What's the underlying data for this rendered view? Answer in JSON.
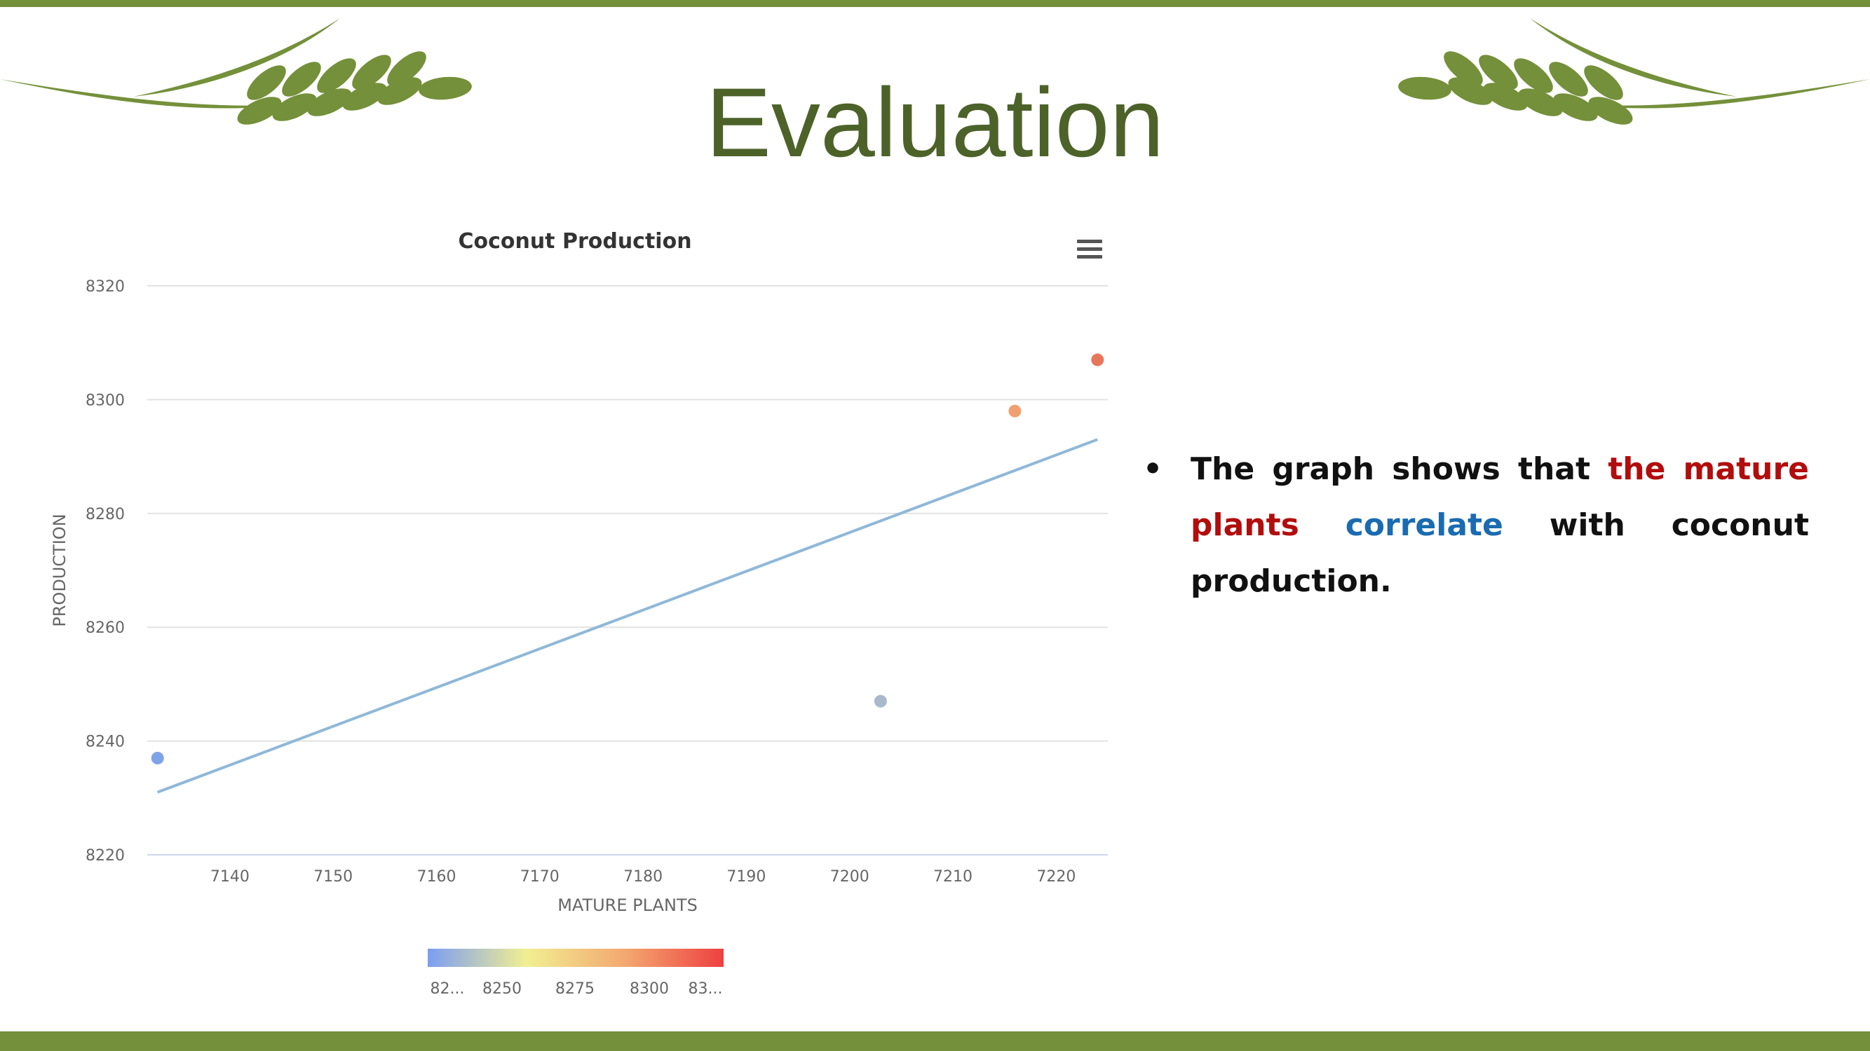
{
  "slide": {
    "title": "Evaluation",
    "bullet": {
      "marker": "•",
      "text_before": "The graph shows that ",
      "highlight_red": "the mature plants",
      "text_between": " ",
      "highlight_blue": "correlate",
      "text_after": " with coconut production."
    },
    "colors": {
      "band": "#74903a",
      "title": "#4c6229",
      "leaf": "#74903a",
      "highlight_red": "#b20d0d",
      "highlight_blue": "#1a6bb0"
    },
    "icons": [
      "wheat-left-icon",
      "wheat-right-icon",
      "menu-icon"
    ]
  },
  "chart_data": {
    "type": "scatter",
    "title": "Coconut Production",
    "xlabel": "MATURE PLANTS",
    "ylabel": "PRODUCTION",
    "xlim": [
      7132,
      7225
    ],
    "ylim": [
      8220,
      8320
    ],
    "x_ticks": [
      7140,
      7150,
      7160,
      7170,
      7180,
      7190,
      7200,
      7210,
      7220
    ],
    "y_ticks": [
      8220,
      8240,
      8260,
      8280,
      8300,
      8320
    ],
    "grid": true,
    "points": [
      {
        "x": 7133,
        "y": 8237,
        "color": "#7fa2e8"
      },
      {
        "x": 7203,
        "y": 8247,
        "color": "#a9b9cc"
      },
      {
        "x": 7216,
        "y": 8298,
        "color": "#f0a070"
      },
      {
        "x": 7224,
        "y": 8307,
        "color": "#e8765a"
      }
    ],
    "trendline": {
      "x1": 7133,
      "y1": 8231,
      "x2": 7224,
      "y2": 8293,
      "color": "#8fb8d8"
    },
    "color_scale": {
      "colors": [
        "#7b9df2",
        "#f1ef92",
        "#f3a870",
        "#ee4040"
      ],
      "labels": [
        "82...",
        "8250",
        "8275",
        "8300",
        "83..."
      ]
    }
  }
}
